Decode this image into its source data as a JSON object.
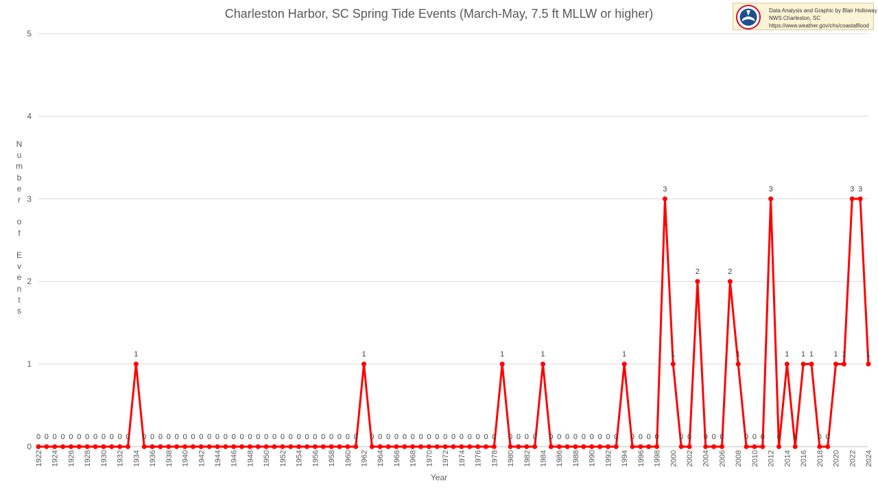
{
  "credit": {
    "line1": "Data Analysis and Graphic by Blair Holloway",
    "line2": "NWS Charleston, SC",
    "line3": "https://www.weather.gov/chs/coastalflood",
    "logo_icon": "nws-logo-icon"
  },
  "chart_data": {
    "type": "line",
    "title": "Charleston Harbor, SC Spring Tide Events (March-May, 7.5 ft MLLW or higher)",
    "xlabel": "Year",
    "ylabel": "Number of Events",
    "ylim": [
      0,
      5
    ],
    "yticks": [
      0,
      1,
      2,
      3,
      4,
      5
    ],
    "grid": true,
    "legend": "none",
    "x_tick_step": 2,
    "color": "#ff0000",
    "x": [
      1922,
      1923,
      1924,
      1925,
      1926,
      1927,
      1928,
      1929,
      1930,
      1931,
      1932,
      1933,
      1934,
      1935,
      1936,
      1937,
      1938,
      1939,
      1940,
      1941,
      1942,
      1943,
      1944,
      1945,
      1946,
      1947,
      1948,
      1949,
      1950,
      1951,
      1952,
      1953,
      1954,
      1955,
      1956,
      1957,
      1958,
      1959,
      1960,
      1961,
      1962,
      1963,
      1964,
      1965,
      1966,
      1967,
      1968,
      1969,
      1970,
      1971,
      1972,
      1973,
      1974,
      1975,
      1976,
      1977,
      1978,
      1979,
      1980,
      1981,
      1982,
      1983,
      1984,
      1985,
      1986,
      1987,
      1988,
      1989,
      1990,
      1991,
      1992,
      1993,
      1994,
      1995,
      1996,
      1997,
      1998,
      1999,
      2000,
      2001,
      2002,
      2003,
      2004,
      2005,
      2006,
      2007,
      2008,
      2009,
      2010,
      2011,
      2012,
      2013,
      2014,
      2015,
      2016,
      2017,
      2018,
      2019,
      2020,
      2021,
      2022,
      2023,
      2024
    ],
    "values": [
      0,
      0,
      0,
      0,
      0,
      0,
      0,
      0,
      0,
      0,
      0,
      0,
      1,
      0,
      0,
      0,
      0,
      0,
      0,
      0,
      0,
      0,
      0,
      0,
      0,
      0,
      0,
      0,
      0,
      0,
      0,
      0,
      0,
      0,
      0,
      0,
      0,
      0,
      0,
      0,
      1,
      0,
      0,
      0,
      0,
      0,
      0,
      0,
      0,
      0,
      0,
      0,
      0,
      0,
      0,
      0,
      0,
      1,
      0,
      0,
      0,
      0,
      1,
      0,
      0,
      0,
      0,
      0,
      0,
      0,
      0,
      0,
      1,
      0,
      0,
      0,
      0,
      3,
      1,
      0,
      0,
      2,
      0,
      0,
      0,
      2,
      1,
      0,
      0,
      0,
      3,
      0,
      1,
      0,
      1,
      1,
      0,
      0,
      1,
      1,
      3,
      3,
      1
    ]
  }
}
